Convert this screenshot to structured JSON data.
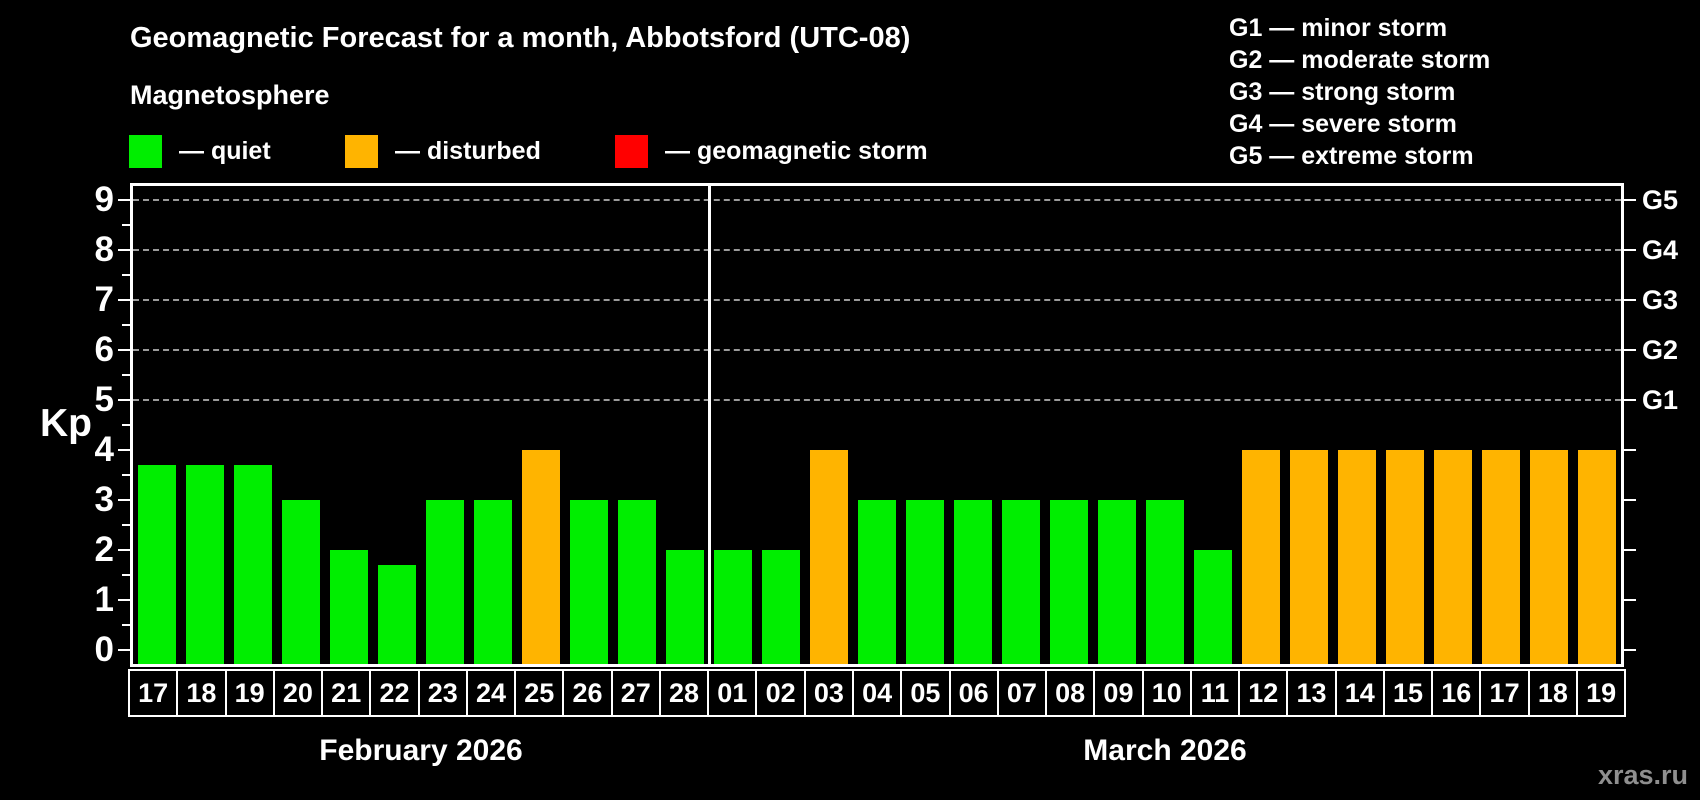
{
  "header": {
    "title": "Geomagnetic Forecast for a month, Abbotsford (UTC-08)",
    "subtitle": "Magnetosphere"
  },
  "legend": {
    "items": [
      {
        "label": "— quiet",
        "status": "quiet",
        "color": "#00ee00"
      },
      {
        "label": "— disturbed",
        "status": "disturbed",
        "color": "#ffb400"
      },
      {
        "label": "— geomagnetic storm",
        "status": "storm",
        "color": "#ff0000"
      }
    ]
  },
  "g_scale": {
    "items": [
      "G1 — minor storm",
      "G2 — moderate storm",
      "G3 — strong storm",
      "G4 — severe storm",
      "G5 — extreme storm"
    ]
  },
  "chart_data": {
    "type": "bar",
    "title": "Geomagnetic Forecast for a month, Abbotsford (UTC-08)",
    "ylabel": "Kp",
    "xlabel": "",
    "ylim": [
      0,
      9
    ],
    "yticks": [
      0,
      1,
      2,
      3,
      4,
      5,
      6,
      7,
      8,
      9
    ],
    "grid": {
      "style": "dashed",
      "horizontal_at": [
        5,
        6,
        7,
        8,
        9
      ]
    },
    "legend_position": "top",
    "right_axis": [
      {
        "label": "G1",
        "value": 5
      },
      {
        "label": "G2",
        "value": 6
      },
      {
        "label": "G3",
        "value": 7
      },
      {
        "label": "G4",
        "value": 8
      },
      {
        "label": "G5",
        "value": 9
      }
    ],
    "months": [
      {
        "label": "February 2026",
        "days": [
          "17",
          "18",
          "19",
          "20",
          "21",
          "22",
          "23",
          "24",
          "25",
          "26",
          "27",
          "28"
        ]
      },
      {
        "label": "March 2026",
        "days": [
          "01",
          "02",
          "03",
          "04",
          "05",
          "06",
          "07",
          "08",
          "09",
          "10",
          "11",
          "12",
          "13",
          "14",
          "15",
          "16",
          "17",
          "18",
          "19"
        ]
      }
    ],
    "values": [
      3.7,
      3.7,
      3.7,
      3,
      2,
      1.7,
      3,
      3,
      4,
      3,
      3,
      2,
      2,
      2,
      4,
      3,
      3,
      3,
      3,
      3,
      3,
      3,
      2,
      4,
      4,
      4,
      4,
      4,
      4,
      4,
      4
    ],
    "statuses": [
      "quiet",
      "quiet",
      "quiet",
      "quiet",
      "quiet",
      "quiet",
      "quiet",
      "quiet",
      "disturbed",
      "quiet",
      "quiet",
      "quiet",
      "quiet",
      "quiet",
      "disturbed",
      "quiet",
      "quiet",
      "quiet",
      "quiet",
      "quiet",
      "quiet",
      "quiet",
      "quiet",
      "disturbed",
      "disturbed",
      "disturbed",
      "disturbed",
      "disturbed",
      "disturbed",
      "disturbed",
      "disturbed"
    ],
    "status_colors": {
      "quiet": "#00ee00",
      "disturbed": "#ffb400",
      "storm": "#ff0000"
    }
  },
  "footer": {
    "watermark": "xras.ru"
  }
}
